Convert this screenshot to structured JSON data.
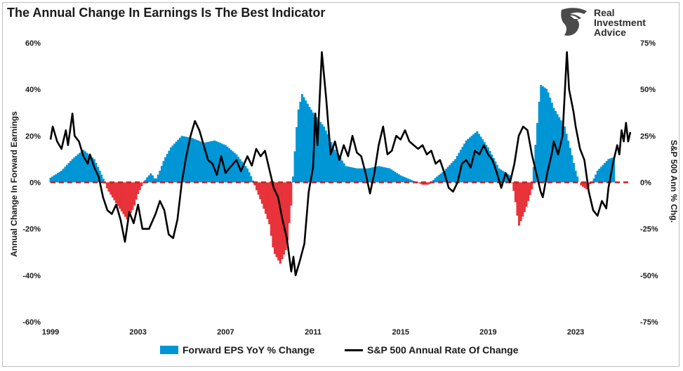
{
  "title": "The Annual Change In Earnings Is The Best Indicator",
  "logo": {
    "lines": [
      "Real",
      "Investment",
      "Advice"
    ],
    "icon": "eagle-head-icon"
  },
  "colors": {
    "bars_positive": "#0096d6",
    "bars_negative": "#e8333a",
    "line": "#000000",
    "zero_line": "#c81e1e"
  },
  "chart_data": {
    "type": "bar",
    "x_ticks": [
      "1999",
      "2003",
      "2007",
      "2011",
      "2015",
      "2019",
      "2023"
    ],
    "ylabel": "Annual Change In Forward Earnings",
    "y2label": "S&P 500  Ann % Chg.",
    "y_ticks": [
      "60%",
      "40%",
      "20%",
      "0%",
      "-20%",
      "-40%",
      "-60%"
    ],
    "y2_ticks": [
      "75%",
      "50%",
      "25%",
      "0%",
      "-25%",
      "-50%",
      "-75%"
    ],
    "ylim": [
      -60,
      60
    ],
    "y2lim": [
      -75,
      75
    ],
    "xlim": [
      1999.0,
      2025.5
    ],
    "legend_position": "bottom",
    "series": [
      {
        "name": "Forward EPS YoY % Change",
        "kind": "bar",
        "axis": "left",
        "points": [
          [
            1999.0,
            2
          ],
          [
            1999.5,
            5
          ],
          [
            2000.0,
            10
          ],
          [
            2000.5,
            14
          ],
          [
            2001.0,
            10
          ],
          [
            2001.4,
            2
          ],
          [
            2001.6,
            -3
          ],
          [
            2002.0,
            -9
          ],
          [
            2002.5,
            -16
          ],
          [
            2002.8,
            -11
          ],
          [
            2003.0,
            -5
          ],
          [
            2003.2,
            -1
          ],
          [
            2003.4,
            2
          ],
          [
            2003.6,
            4
          ],
          [
            2003.8,
            1
          ],
          [
            2004.0,
            5
          ],
          [
            2004.2,
            10
          ],
          [
            2004.5,
            15
          ],
          [
            2005.0,
            20
          ],
          [
            2005.5,
            19
          ],
          [
            2006.0,
            17
          ],
          [
            2006.5,
            18
          ],
          [
            2007.0,
            16
          ],
          [
            2007.5,
            12
          ],
          [
            2008.0,
            6
          ],
          [
            2008.2,
            2
          ],
          [
            2008.4,
            -3
          ],
          [
            2008.7,
            -10
          ],
          [
            2009.0,
            -18
          ],
          [
            2009.2,
            -30
          ],
          [
            2009.5,
            -35
          ],
          [
            2009.8,
            -28
          ],
          [
            2010.0,
            -10
          ],
          [
            2010.1,
            5
          ],
          [
            2010.3,
            30
          ],
          [
            2010.5,
            38
          ],
          [
            2010.8,
            33
          ],
          [
            2011.0,
            30
          ],
          [
            2011.5,
            24
          ],
          [
            2012.0,
            14
          ],
          [
            2012.5,
            7
          ],
          [
            2013.0,
            6
          ],
          [
            2013.5,
            6
          ],
          [
            2014.0,
            7
          ],
          [
            2014.5,
            6
          ],
          [
            2015.0,
            3
          ],
          [
            2015.5,
            1
          ],
          [
            2016.0,
            -1
          ],
          [
            2016.3,
            -1
          ],
          [
            2016.6,
            2
          ],
          [
            2017.0,
            5
          ],
          [
            2017.5,
            10
          ],
          [
            2018.0,
            18
          ],
          [
            2018.5,
            22
          ],
          [
            2019.0,
            15
          ],
          [
            2019.5,
            6
          ],
          [
            2020.0,
            3
          ],
          [
            2020.2,
            -5
          ],
          [
            2020.4,
            -19
          ],
          [
            2020.7,
            -12
          ],
          [
            2021.0,
            -3
          ],
          [
            2021.2,
            20
          ],
          [
            2021.4,
            42
          ],
          [
            2021.7,
            40
          ],
          [
            2022.0,
            32
          ],
          [
            2022.5,
            24
          ],
          [
            2022.8,
            13
          ],
          [
            2023.0,
            5
          ],
          [
            2023.2,
            -1
          ],
          [
            2023.5,
            -3
          ],
          [
            2023.8,
            1
          ],
          [
            2024.0,
            5
          ],
          [
            2024.5,
            10
          ],
          [
            2024.8,
            11
          ]
        ]
      },
      {
        "name": "S&P 500 Annual Rate Of Change",
        "kind": "line",
        "axis": "right",
        "points": [
          [
            1999.0,
            23
          ],
          [
            1999.1,
            30
          ],
          [
            1999.3,
            22
          ],
          [
            1999.5,
            18
          ],
          [
            1999.7,
            28
          ],
          [
            1999.8,
            20
          ],
          [
            2000.0,
            37
          ],
          [
            2000.1,
            25
          ],
          [
            2000.3,
            22
          ],
          [
            2000.5,
            14
          ],
          [
            2000.7,
            10
          ],
          [
            2000.8,
            15
          ],
          [
            2001.0,
            8
          ],
          [
            2001.2,
            3
          ],
          [
            2001.4,
            -8
          ],
          [
            2001.6,
            -15
          ],
          [
            2001.8,
            -17
          ],
          [
            2002.0,
            -12
          ],
          [
            2002.2,
            -20
          ],
          [
            2002.4,
            -32
          ],
          [
            2002.6,
            -16
          ],
          [
            2002.8,
            -22
          ],
          [
            2003.0,
            -12
          ],
          [
            2003.2,
            -25
          ],
          [
            2003.5,
            -25
          ],
          [
            2003.8,
            -17
          ],
          [
            2004.0,
            -10
          ],
          [
            2004.2,
            -15
          ],
          [
            2004.4,
            -28
          ],
          [
            2004.6,
            -30
          ],
          [
            2004.8,
            -20
          ],
          [
            2005.0,
            0
          ],
          [
            2005.2,
            14
          ],
          [
            2005.4,
            25
          ],
          [
            2005.6,
            33
          ],
          [
            2005.8,
            28
          ],
          [
            2006.0,
            20
          ],
          [
            2006.2,
            12
          ],
          [
            2006.4,
            10
          ],
          [
            2006.6,
            4
          ],
          [
            2006.8,
            14
          ],
          [
            2007.0,
            5
          ],
          [
            2007.2,
            8
          ],
          [
            2007.5,
            12
          ],
          [
            2007.7,
            6
          ],
          [
            2008.0,
            14
          ],
          [
            2008.2,
            9
          ],
          [
            2008.4,
            18
          ],
          [
            2008.6,
            14
          ],
          [
            2008.8,
            17
          ],
          [
            2009.0,
            7
          ],
          [
            2009.2,
            -3
          ],
          [
            2009.4,
            -8
          ],
          [
            2009.6,
            -20
          ],
          [
            2009.8,
            -30
          ],
          [
            2010.0,
            -48
          ],
          [
            2010.1,
            -40
          ],
          [
            2010.2,
            -50
          ],
          [
            2010.4,
            -42
          ],
          [
            2010.6,
            -33
          ],
          [
            2010.8,
            -5
          ],
          [
            2011.0,
            8
          ],
          [
            2011.1,
            37
          ],
          [
            2011.2,
            20
          ],
          [
            2011.4,
            70
          ],
          [
            2011.6,
            45
          ],
          [
            2011.8,
            15
          ],
          [
            2012.0,
            22
          ],
          [
            2012.2,
            12
          ],
          [
            2012.4,
            20
          ],
          [
            2012.6,
            14
          ],
          [
            2012.8,
            25
          ],
          [
            2013.0,
            16
          ],
          [
            2013.2,
            14
          ],
          [
            2013.4,
            5
          ],
          [
            2013.6,
            -6
          ],
          [
            2013.8,
            5
          ],
          [
            2014.0,
            20
          ],
          [
            2014.2,
            30
          ],
          [
            2014.4,
            15
          ],
          [
            2014.6,
            17
          ],
          [
            2014.8,
            25
          ],
          [
            2015.0,
            23
          ],
          [
            2015.2,
            28
          ],
          [
            2015.4,
            22
          ],
          [
            2015.6,
            20
          ],
          [
            2015.8,
            18
          ],
          [
            2016.0,
            20
          ],
          [
            2016.2,
            15
          ],
          [
            2016.4,
            17
          ],
          [
            2016.6,
            10
          ],
          [
            2016.8,
            12
          ],
          [
            2017.0,
            5
          ],
          [
            2017.2,
            -3
          ],
          [
            2017.4,
            -5
          ],
          [
            2017.6,
            0
          ],
          [
            2017.8,
            10
          ],
          [
            2018.0,
            12
          ],
          [
            2018.2,
            8
          ],
          [
            2018.4,
            17
          ],
          [
            2018.6,
            15
          ],
          [
            2018.8,
            20
          ],
          [
            2019.0,
            15
          ],
          [
            2019.2,
            12
          ],
          [
            2019.4,
            5
          ],
          [
            2019.6,
            -3
          ],
          [
            2019.8,
            5
          ],
          [
            2020.0,
            0
          ],
          [
            2020.2,
            10
          ],
          [
            2020.4,
            25
          ],
          [
            2020.6,
            30
          ],
          [
            2020.8,
            28
          ],
          [
            2021.0,
            15
          ],
          [
            2021.2,
            5
          ],
          [
            2021.4,
            -5
          ],
          [
            2021.5,
            -8
          ],
          [
            2021.7,
            5
          ],
          [
            2021.9,
            15
          ],
          [
            2022.0,
            22
          ],
          [
            2022.2,
            15
          ],
          [
            2022.4,
            25
          ],
          [
            2022.6,
            70
          ],
          [
            2022.7,
            50
          ],
          [
            2022.9,
            38
          ],
          [
            2023.0,
            30
          ],
          [
            2023.2,
            18
          ],
          [
            2023.4,
            12
          ],
          [
            2023.6,
            -5
          ],
          [
            2023.8,
            -15
          ],
          [
            2024.0,
            -18
          ],
          [
            2024.2,
            -10
          ],
          [
            2024.4,
            -14
          ],
          [
            2024.5,
            -3
          ],
          [
            2024.7,
            10
          ],
          [
            2024.9,
            20
          ],
          [
            2025.0,
            15
          ],
          [
            2025.1,
            28
          ],
          [
            2025.2,
            22
          ],
          [
            2025.3,
            32
          ],
          [
            2025.4,
            22
          ],
          [
            2025.5,
            27
          ]
        ]
      }
    ]
  }
}
